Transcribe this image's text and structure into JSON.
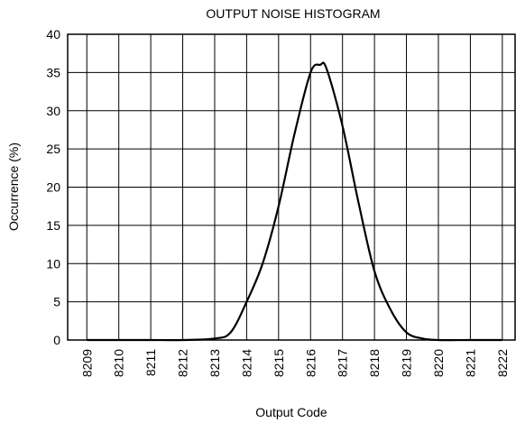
{
  "chart_data": {
    "type": "line",
    "title": "OUTPUT NOISE HISTOGRAM",
    "x_label": "Output Code",
    "y_label": "Occurrence (%)",
    "x": [
      8209,
      8210,
      8211,
      8212,
      8213,
      8213.5,
      8214,
      8214.5,
      8215,
      8215.5,
      8216,
      8216.3,
      8216.5,
      8217,
      8217.5,
      8218,
      8218.5,
      8219,
      8219.5,
      8220,
      8221,
      8222
    ],
    "series": [
      {
        "name": "Occurrence",
        "color": "#000000",
        "values": [
          0,
          0,
          0,
          0,
          0.2,
          1,
          5,
          10,
          17.5,
          27,
          35,
          36,
          35.5,
          28,
          18,
          9,
          4,
          1,
          0.2,
          0,
          0,
          0
        ]
      }
    ],
    "xlim": [
      8208.4,
      8222.4
    ],
    "xticks": [
      8209,
      8210,
      8211,
      8212,
      8213,
      8214,
      8215,
      8216,
      8217,
      8218,
      8219,
      8220,
      8221,
      8222
    ],
    "ylim": [
      0,
      40
    ],
    "yticks": [
      0,
      5,
      10,
      15,
      20,
      25,
      30,
      35,
      40
    ],
    "grid": true
  }
}
